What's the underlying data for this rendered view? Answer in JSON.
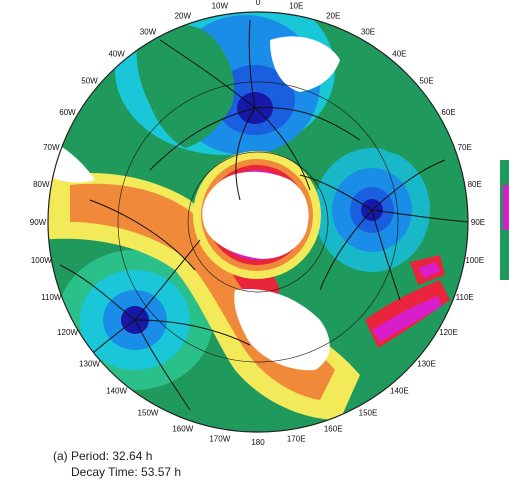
{
  "caption": {
    "line1": "(a) Period: 32.64 h",
    "line2": "Decay Time: 53.57 h"
  },
  "longitude_labels": [
    "0",
    "10E",
    "20E",
    "30E",
    "40E",
    "50E",
    "60E",
    "70E",
    "80E",
    "90E",
    "100E",
    "110E",
    "120E",
    "130E",
    "140E",
    "150E",
    "160E",
    "170E",
    "180",
    "170W",
    "160W",
    "150W",
    "140W",
    "130W",
    "120W",
    "110W",
    "100W",
    "90W",
    "80W",
    "70W",
    "60W",
    "50W",
    "40W",
    "30W",
    "20W",
    "10W"
  ],
  "colors": {
    "ocean_base": "#1f9a5c",
    "green_dark": "#0f8a55",
    "cyan": "#19c7d8",
    "blue": "#1a5fe0",
    "deep_blue": "#1818a8",
    "yellow": "#f3ea5a",
    "orange": "#f08a3a",
    "red": "#e8253a",
    "magenta": "#d81ec8",
    "purple": "#8a2be2",
    "land": "#ffffff"
  }
}
